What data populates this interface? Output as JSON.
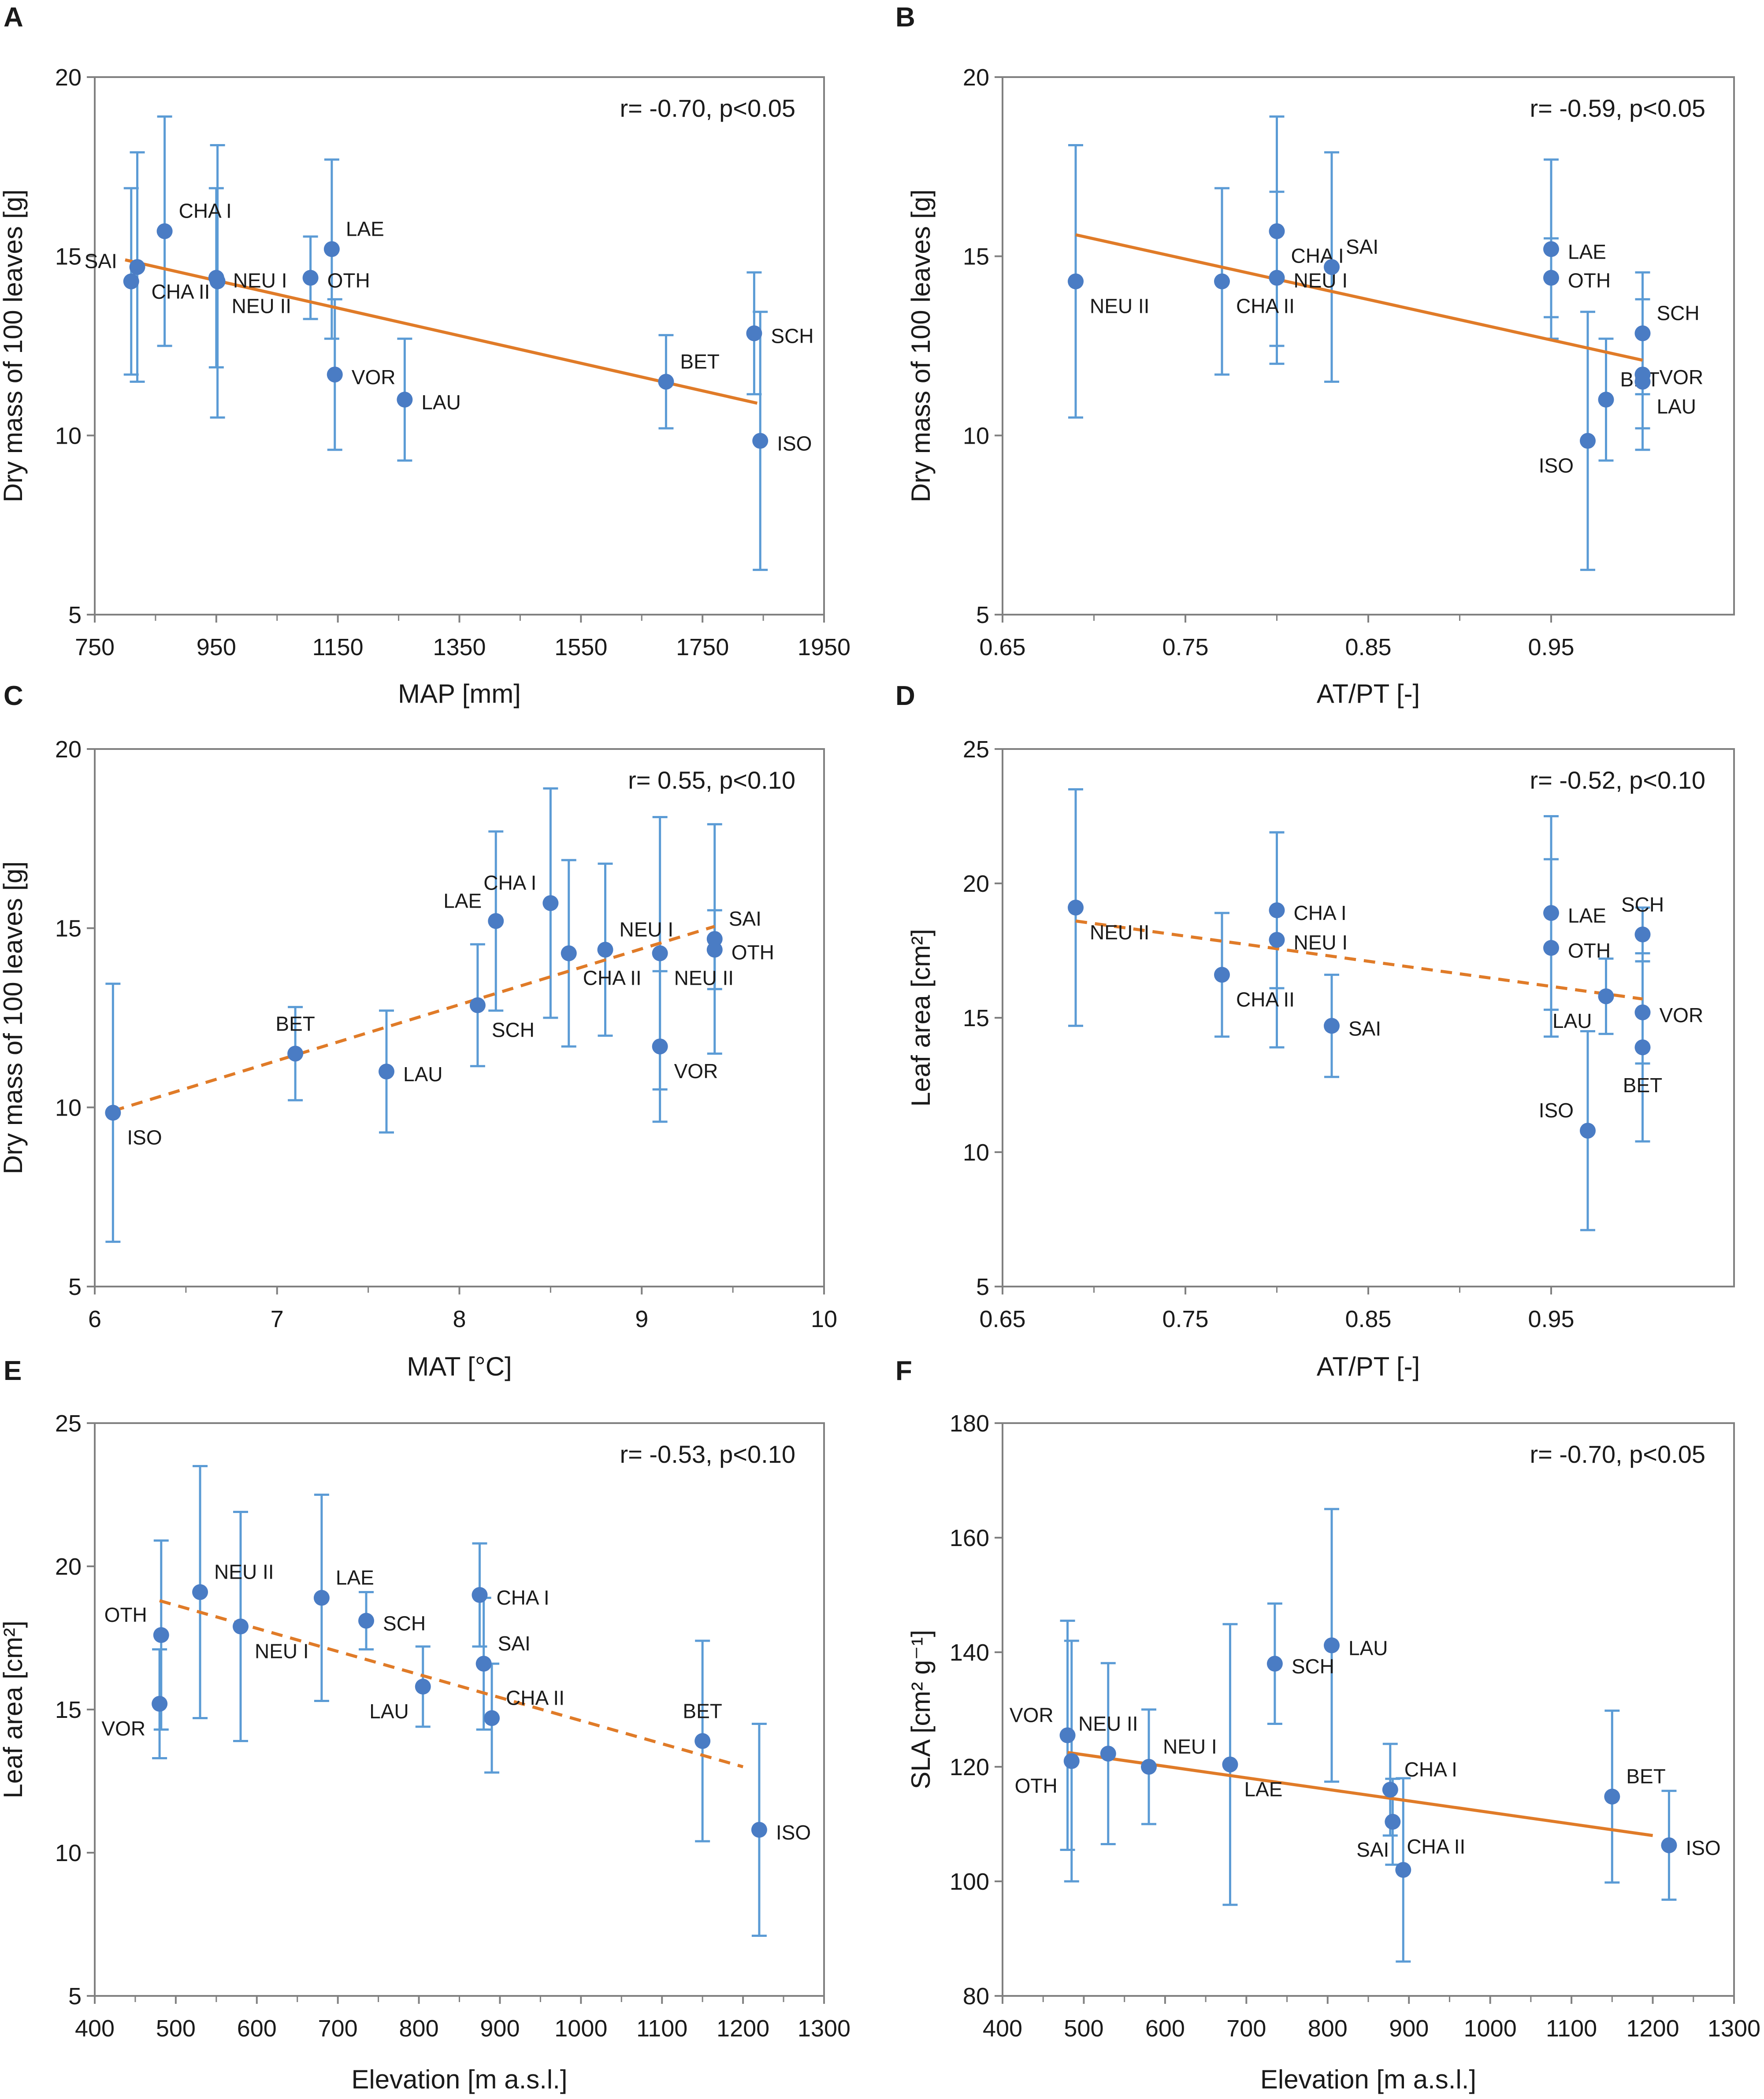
{
  "colors": {
    "point": "#4A7CC4",
    "errorbar": "#5B9BD5",
    "trend": "#E07B28",
    "frame": "#808080"
  },
  "chart_data": [
    {
      "panel": "A",
      "type": "scatter",
      "xlabel": "MAP [mm]",
      "ylabel": "Dry mass of 100 leaves [g]",
      "annotation": "r= -0.70, p<0.05",
      "xlim": [
        750,
        1950
      ],
      "ylim": [
        5,
        20
      ],
      "xticks": [
        750,
        950,
        1150,
        1350,
        1550,
        1750,
        1950
      ],
      "yticks": [
        5,
        10,
        15,
        20
      ],
      "trend": {
        "style": "solid",
        "x": [
          800,
          1840
        ],
        "y": [
          14.9,
          10.9
        ]
      },
      "points": [
        {
          "label": "SAI",
          "x": 810,
          "y": 14.3,
          "err": 2.6,
          "lpos": "ul"
        },
        {
          "label": "CHA II",
          "x": 820,
          "y": 14.7,
          "err": 3.2,
          "lpos": "br"
        },
        {
          "label": "CHA I",
          "x": 865,
          "y": 15.7,
          "err": 3.2,
          "lpos": "ur"
        },
        {
          "label": "NEU I",
          "x": 950,
          "y": 14.4,
          "err": 2.5,
          "lpos": "r"
        },
        {
          "label": "NEU II",
          "x": 952,
          "y": 14.3,
          "err": 3.8,
          "lpos": "br"
        },
        {
          "label": "OTH",
          "x": 1105,
          "y": 14.4,
          "err": 1.15,
          "lpos": "r"
        },
        {
          "label": "LAE",
          "x": 1140,
          "y": 15.2,
          "err": 2.5,
          "lpos": "ur"
        },
        {
          "label": "VOR",
          "x": 1145,
          "y": 11.7,
          "err": 2.1,
          "lpos": "r"
        },
        {
          "label": "LAU",
          "x": 1260,
          "y": 11.0,
          "err": 1.7,
          "lpos": "r"
        },
        {
          "label": "BET",
          "x": 1690,
          "y": 11.5,
          "err": 1.3,
          "lpos": "ur"
        },
        {
          "label": "SCH",
          "x": 1835,
          "y": 12.85,
          "err": 1.7,
          "lpos": "r"
        },
        {
          "label": "ISO",
          "x": 1845,
          "y": 9.85,
          "err": 3.6,
          "lpos": "r"
        }
      ]
    },
    {
      "panel": "B",
      "type": "scatter",
      "xlabel": "AT/PT [-]",
      "ylabel": "Dry mass of 100 leaves [g]",
      "annotation": "r= -0.59, p<0.05",
      "xlim": [
        0.65,
        1.05
      ],
      "ylim": [
        5,
        20
      ],
      "xticks": [
        0.65,
        0.75,
        0.85,
        0.95
      ],
      "yticks": [
        5,
        10,
        15,
        20
      ],
      "trend": {
        "style": "solid",
        "x": [
          0.69,
          1.0
        ],
        "y": [
          15.6,
          12.1
        ]
      },
      "points": [
        {
          "label": "NEU II",
          "x": 0.69,
          "y": 14.3,
          "err": 3.8,
          "lpos": "br"
        },
        {
          "label": "CHA II",
          "x": 0.77,
          "y": 14.3,
          "err": 2.6,
          "lpos": "br"
        },
        {
          "label": "CHA I",
          "x": 0.8,
          "y": 15.7,
          "err": 3.2,
          "lpos": "br"
        },
        {
          "label": "NEU I",
          "x": 0.8,
          "y": 14.4,
          "err": 2.4,
          "lpos": "r"
        },
        {
          "label": "SAI",
          "x": 0.83,
          "y": 14.7,
          "err": 3.2,
          "lpos": "ur"
        },
        {
          "label": "LAE",
          "x": 0.95,
          "y": 15.2,
          "err": 2.5,
          "lpos": "r"
        },
        {
          "label": "OTH",
          "x": 0.95,
          "y": 14.4,
          "err": 1.1,
          "lpos": "r"
        },
        {
          "label": "ISO",
          "x": 0.97,
          "y": 9.85,
          "err": 3.6,
          "lpos": "bl"
        },
        {
          "label": "BET",
          "x": 0.98,
          "y": 11.0,
          "err": 1.7,
          "lpos": "ur"
        },
        {
          "label": "SCH",
          "x": 1.0,
          "y": 12.85,
          "err": 1.7,
          "lpos": "ur"
        },
        {
          "label": "VOR",
          "x": 1.0,
          "y": 11.7,
          "err": 2.1,
          "lpos": "r"
        },
        {
          "label": "LAU",
          "x": 1.0,
          "y": 11.5,
          "err": 1.3,
          "lpos": "br"
        }
      ]
    },
    {
      "panel": "C",
      "type": "scatter",
      "xlabel": "MAT [°C]",
      "ylabel": "Dry mass of 100 leaves [g]",
      "annotation": "r= 0.55, p<0.10",
      "xlim": [
        6,
        10
      ],
      "ylim": [
        5,
        20
      ],
      "xticks": [
        6,
        7,
        8,
        9,
        10
      ],
      "yticks": [
        5,
        10,
        15,
        20
      ],
      "trend": {
        "style": "dashed",
        "x": [
          6.1,
          9.4
        ],
        "y": [
          9.9,
          15.05
        ]
      },
      "points": [
        {
          "label": "ISO",
          "x": 6.1,
          "y": 9.85,
          "err": 3.6,
          "lpos": "br"
        },
        {
          "label": "BET",
          "x": 7.1,
          "y": 11.5,
          "err": 1.3,
          "lpos": "u"
        },
        {
          "label": "LAU",
          "x": 7.6,
          "y": 11.0,
          "err": 1.7,
          "lpos": "r"
        },
        {
          "label": "SCH",
          "x": 8.1,
          "y": 12.85,
          "err": 1.7,
          "lpos": "br"
        },
        {
          "label": "LAE",
          "x": 8.2,
          "y": 15.2,
          "err": 2.5,
          "lpos": "ul"
        },
        {
          "label": "CHA I",
          "x": 8.5,
          "y": 15.7,
          "err": 3.2,
          "lpos": "ul"
        },
        {
          "label": "CHA II",
          "x": 8.6,
          "y": 14.3,
          "err": 2.6,
          "lpos": "br"
        },
        {
          "label": "NEU I",
          "x": 8.8,
          "y": 14.4,
          "err": 2.4,
          "lpos": "ur"
        },
        {
          "label": "NEU II",
          "x": 9.1,
          "y": 14.3,
          "err": 3.8,
          "lpos": "br"
        },
        {
          "label": "VOR",
          "x": 9.1,
          "y": 11.7,
          "err": 2.1,
          "lpos": "br"
        },
        {
          "label": "SAI",
          "x": 9.4,
          "y": 14.7,
          "err": 3.2,
          "lpos": "ur"
        },
        {
          "label": "OTH",
          "x": 9.4,
          "y": 14.4,
          "err": 1.1,
          "lpos": "r"
        }
      ]
    },
    {
      "panel": "D",
      "type": "scatter",
      "xlabel": "AT/PT [-]",
      "ylabel": "Leaf area [cm²]",
      "annotation": "r= -0.52, p<0.10",
      "xlim": [
        0.65,
        1.05
      ],
      "ylim": [
        5,
        25
      ],
      "xticks": [
        0.65,
        0.75,
        0.85,
        0.95
      ],
      "yticks": [
        5,
        10,
        15,
        20,
        25
      ],
      "trend": {
        "style": "dashed",
        "x": [
          0.69,
          1.0
        ],
        "y": [
          18.6,
          15.7
        ]
      },
      "points": [
        {
          "label": "NEU II",
          "x": 0.69,
          "y": 19.1,
          "err": 4.4,
          "lpos": "br"
        },
        {
          "label": "CHA II",
          "x": 0.77,
          "y": 16.6,
          "err": 2.3,
          "lpos": "br"
        },
        {
          "label": "CHA I",
          "x": 0.8,
          "y": 19.0,
          "err": 2.9,
          "lpos": "r"
        },
        {
          "label": "NEU I",
          "x": 0.8,
          "y": 17.9,
          "err": 4.0,
          "lpos": "r"
        },
        {
          "label": "SAI",
          "x": 0.83,
          "y": 14.7,
          "err": 1.9,
          "lpos": "r"
        },
        {
          "label": "LAE",
          "x": 0.95,
          "y": 18.9,
          "err": 3.6,
          "lpos": "r"
        },
        {
          "label": "OTH",
          "x": 0.95,
          "y": 17.6,
          "err": 3.3,
          "lpos": "r"
        },
        {
          "label": "ISO",
          "x": 0.97,
          "y": 10.8,
          "err": 3.7,
          "lpos": "ul"
        },
        {
          "label": "LAU",
          "x": 0.98,
          "y": 15.8,
          "err": 1.4,
          "lpos": "bl"
        },
        {
          "label": "SCH",
          "x": 1.0,
          "y": 18.1,
          "err": 1.0,
          "lpos": "u"
        },
        {
          "label": "VOR",
          "x": 1.0,
          "y": 15.2,
          "err": 1.9,
          "lpos": "r"
        },
        {
          "label": "BET",
          "x": 1.0,
          "y": 13.9,
          "err": 3.5,
          "lpos": "b"
        }
      ]
    },
    {
      "panel": "E",
      "type": "scatter",
      "xlabel": "Elevation [m a.s.l.]",
      "ylabel": "Leaf area [cm²]",
      "annotation": "r= -0.53, p<0.10",
      "xlim": [
        400,
        1300
      ],
      "ylim": [
        5,
        25
      ],
      "xticks": [
        400,
        500,
        600,
        700,
        800,
        900,
        1000,
        1100,
        1200,
        1300
      ],
      "yticks": [
        5,
        10,
        15,
        20,
        25
      ],
      "trend": {
        "style": "dashed",
        "x": [
          480,
          1200
        ],
        "y": [
          18.8,
          13.0
        ]
      },
      "points": [
        {
          "label": "OTH",
          "x": 482,
          "y": 17.6,
          "err": 3.3,
          "lpos": "ul"
        },
        {
          "label": "VOR",
          "x": 480,
          "y": 15.2,
          "err": 1.9,
          "lpos": "bl"
        },
        {
          "label": "NEU II",
          "x": 530,
          "y": 19.1,
          "err": 4.4,
          "lpos": "ur"
        },
        {
          "label": "NEU I",
          "x": 580,
          "y": 17.9,
          "err": 4.0,
          "lpos": "br"
        },
        {
          "label": "LAE",
          "x": 680,
          "y": 18.9,
          "err": 3.6,
          "lpos": "ur"
        },
        {
          "label": "SCH",
          "x": 735,
          "y": 18.1,
          "err": 1.0,
          "lpos": "r"
        },
        {
          "label": "LAU",
          "x": 805,
          "y": 15.8,
          "err": 1.4,
          "lpos": "bl"
        },
        {
          "label": "CHA I",
          "x": 875,
          "y": 19.0,
          "err": 1.8,
          "lpos": "r"
        },
        {
          "label": "SAI",
          "x": 880,
          "y": 16.6,
          "err": 2.3,
          "lpos": "ur"
        },
        {
          "label": "CHA II",
          "x": 890,
          "y": 14.7,
          "err": 1.9,
          "lpos": "ur"
        },
        {
          "label": "BET",
          "x": 1150,
          "y": 13.9,
          "err": 3.5,
          "lpos": "u"
        },
        {
          "label": "ISO",
          "x": 1220,
          "y": 10.8,
          "err": 3.7,
          "lpos": "r"
        }
      ]
    },
    {
      "panel": "F",
      "type": "scatter",
      "xlabel": "Elevation [m a.s.l.]",
      "ylabel": "SLA [cm² g⁻¹]",
      "annotation": "r= -0.70, p<0.05",
      "xlim": [
        400,
        1300
      ],
      "ylim": [
        80,
        180
      ],
      "xticks": [
        400,
        500,
        600,
        700,
        800,
        900,
        1000,
        1100,
        1200,
        1300
      ],
      "yticks": [
        80,
        100,
        120,
        140,
        160,
        180
      ],
      "trend": {
        "style": "solid",
        "x": [
          480,
          1200
        ],
        "y": [
          122.5,
          108
        ]
      },
      "points": [
        {
          "label": "VOR",
          "x": 480,
          "y": 125.5,
          "err": 20.0,
          "lpos": "ul"
        },
        {
          "label": "OTH",
          "x": 485,
          "y": 121.0,
          "err": 21.0,
          "lpos": "bl"
        },
        {
          "label": "NEU II",
          "x": 530,
          "y": 122.3,
          "err": 15.8,
          "lpos": "u"
        },
        {
          "label": "NEU I",
          "x": 580,
          "y": 120.0,
          "err": 10.0,
          "lpos": "ur"
        },
        {
          "label": "LAE",
          "x": 680,
          "y": 120.4,
          "err": 24.5,
          "lpos": "br"
        },
        {
          "label": "SCH",
          "x": 735,
          "y": 138.0,
          "err": 10.5,
          "lpos": "r"
        },
        {
          "label": "LAU",
          "x": 805,
          "y": 141.2,
          "err": 23.8,
          "lpos": "r"
        },
        {
          "label": "CHA I",
          "x": 877,
          "y": 116.0,
          "err": 8.0,
          "lpos": "ur"
        },
        {
          "label": "CHA II",
          "x": 880,
          "y": 110.4,
          "err": 7.5,
          "lpos": "br"
        },
        {
          "label": "SAI",
          "x": 893,
          "y": 102.0,
          "err": 16.0,
          "lpos": "ul"
        },
        {
          "label": "BET",
          "x": 1150,
          "y": 114.8,
          "err": 15.0,
          "lpos": "ur"
        },
        {
          "label": "ISO",
          "x": 1220,
          "y": 106.3,
          "err": 9.5,
          "lpos": "r"
        }
      ]
    }
  ]
}
